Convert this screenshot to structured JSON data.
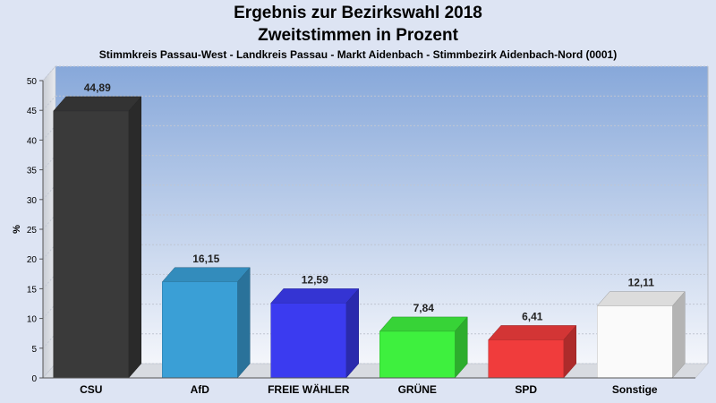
{
  "header": {
    "title": "Ergebnis zur Bezirkswahl 2018",
    "subtitle": "Zweitstimmen in Prozent",
    "region": "Stimmkreis Passau-West - Landkreis Passau - Markt Aidenbach - Stimmbezirk Aidenbach-Nord (0001)"
  },
  "chart_data": {
    "type": "bar",
    "title": "Ergebnis zur Bezirkswahl 2018",
    "subtitle": "Zweitstimmen in Prozent",
    "xlabel": "",
    "ylabel": "%",
    "ylim": [
      0,
      50
    ],
    "yticks": [
      "0",
      "5",
      "10",
      "15",
      "20",
      "25",
      "30",
      "35",
      "40",
      "45",
      "50"
    ],
    "categories": [
      "CSU",
      "AfD",
      "FREIE WÄHLER",
      "GRÜNE",
      "SPD",
      "Sonstige"
    ],
    "values": [
      44.89,
      16.15,
      12.59,
      7.84,
      6.41,
      12.11
    ],
    "value_labels": [
      "44,89",
      "16,15",
      "12,59",
      "7,84",
      "6,41",
      "12,11"
    ],
    "colors": [
      "#3a3a3a",
      "#3a9fd6",
      "#3b3bf0",
      "#3ef03e",
      "#f03c3c",
      "#fafafa"
    ],
    "grid": true,
    "legend": "none"
  }
}
